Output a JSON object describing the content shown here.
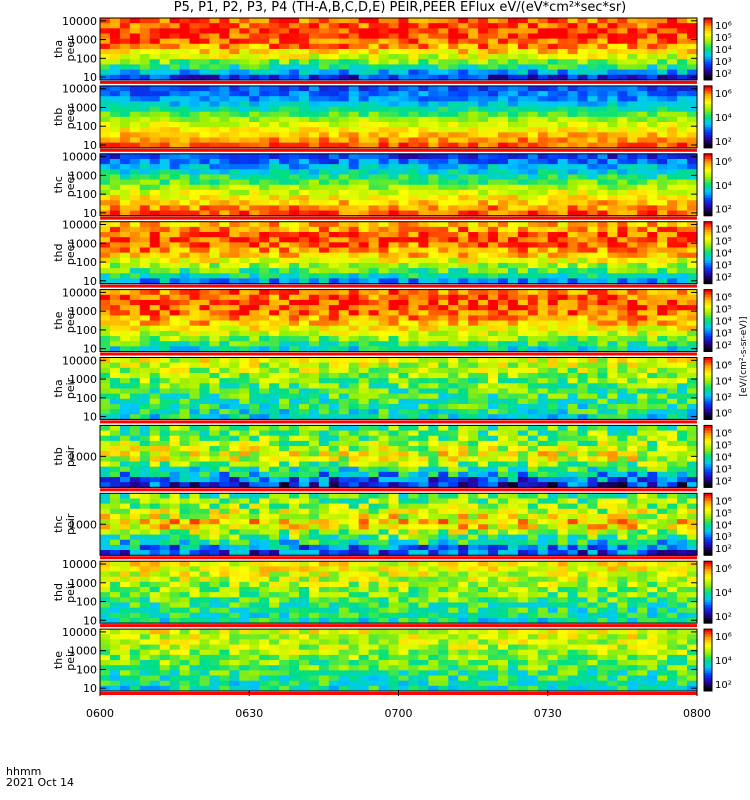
{
  "title": "P5, P1, P2, P3, P4 (TH-A,B,C,D,E) PEIR,PEER EFlux eV/(eV*cm²*sec*sr)",
  "footer": {
    "time_label": "hhmm",
    "date_label": "2021 Oct 14"
  },
  "colorbar_unit": "[eV/(cm²-s-sr-eV)]",
  "colors": {
    "scale": [
      "#000000",
      "#2a00a0",
      "#0040ff",
      "#00c8ff",
      "#00e080",
      "#a0f000",
      "#ffff00",
      "#ffa000",
      "#ff0000"
    ],
    "frame": "#000000",
    "separator": "#ff0000"
  },
  "chart_data": {
    "type": "heatmap",
    "x_ticks": [
      "0600",
      "0630",
      "0700",
      "0730",
      "0800"
    ],
    "x_range": [
      "06:00",
      "08:00"
    ],
    "panels": [
      {
        "probe": "tha",
        "species": "peer",
        "y_ticks": [
          "10",
          "100",
          "1000",
          "10000"
        ],
        "cb_ticks": [
          "10⁶",
          "10⁵",
          "10⁴",
          "10³",
          "10²"
        ],
        "profile": [
          0.15,
          0.55,
          0.85,
          0.98,
          0.9
        ],
        "noise": 0.12
      },
      {
        "probe": "thb",
        "species": "peer",
        "y_ticks": [
          "10",
          "100",
          "1000",
          "10000"
        ],
        "cb_ticks": [
          "10⁶",
          "10⁴",
          "10²"
        ],
        "profile": [
          0.95,
          0.8,
          0.6,
          0.35,
          0.25
        ],
        "noise": 0.08
      },
      {
        "probe": "thc",
        "species": "peer",
        "y_ticks": [
          "10",
          "100",
          "1000",
          "10000"
        ],
        "cb_ticks": [
          "10⁶",
          "10⁴",
          "10²"
        ],
        "profile": [
          0.95,
          0.8,
          0.6,
          0.4,
          0.2
        ],
        "noise": 0.1
      },
      {
        "probe": "thd",
        "species": "peer",
        "y_ticks": [
          "10",
          "100",
          "1000",
          "10000"
        ],
        "cb_ticks": [
          "10⁶",
          "10⁵",
          "10⁴",
          "10³",
          "10²"
        ],
        "profile": [
          0.3,
          0.6,
          0.85,
          0.95,
          0.8
        ],
        "noise": 0.12
      },
      {
        "probe": "the",
        "species": "peer",
        "y_ticks": [
          "10",
          "100",
          "1000",
          "10000"
        ],
        "cb_ticks": [
          "10⁶",
          "10⁵",
          "10⁴",
          "10³",
          "10²"
        ],
        "profile": [
          0.4,
          0.65,
          0.85,
          0.95,
          0.88
        ],
        "noise": 0.12
      },
      {
        "probe": "tha",
        "species": "peir",
        "y_ticks": [
          "10",
          "100",
          "1000",
          "10000"
        ],
        "cb_ticks": [
          "10⁶",
          "10⁴",
          "10²",
          "10⁰"
        ],
        "profile": [
          0.45,
          0.5,
          0.55,
          0.65,
          0.72
        ],
        "noise": 0.15
      },
      {
        "probe": "thb",
        "species": "peir",
        "y_ticks": [
          "1000"
        ],
        "cb_ticks": [
          "10⁶",
          "10⁵",
          "10⁴",
          "10³",
          "10²"
        ],
        "profile": [
          0.15,
          0.45,
          0.75,
          0.6,
          0.55
        ],
        "noise": 0.18
      },
      {
        "probe": "thc",
        "species": "peir",
        "y_ticks": [
          "1000"
        ],
        "cb_ticks": [
          "10⁶",
          "10⁵",
          "10⁴",
          "10³",
          "10²"
        ],
        "profile": [
          0.2,
          0.5,
          0.8,
          0.65,
          0.55
        ],
        "noise": 0.18
      },
      {
        "probe": "thd",
        "species": "peir",
        "y_ticks": [
          "10",
          "100",
          "1000",
          "10000"
        ],
        "cb_ticks": [
          "10⁶",
          "10⁴",
          "10²"
        ],
        "profile": [
          0.45,
          0.5,
          0.6,
          0.7,
          0.75
        ],
        "noise": 0.14
      },
      {
        "probe": "the",
        "species": "peir",
        "y_ticks": [
          "10",
          "100",
          "1000",
          "10000"
        ],
        "cb_ticks": [
          "10⁶",
          "10⁴",
          "10²"
        ],
        "profile": [
          0.45,
          0.5,
          0.6,
          0.68,
          0.72
        ],
        "noise": 0.14
      }
    ]
  }
}
